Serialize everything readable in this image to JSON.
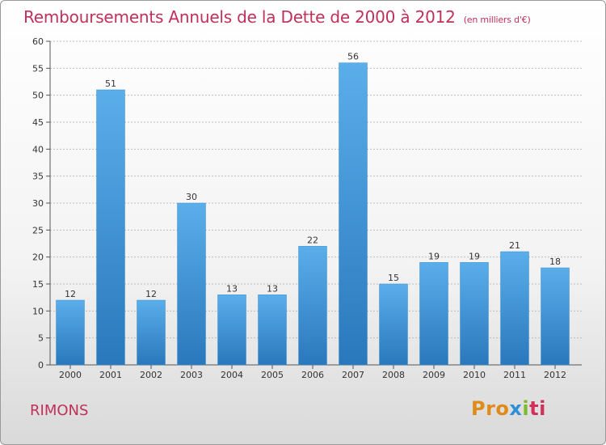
{
  "header": {
    "title": "Remboursements Annuels de la Dette de 2000 à 2012",
    "unit": "(en milliers d'€)"
  },
  "footer": {
    "place": "RIMONS",
    "logo": {
      "parts": [
        "Pro",
        "x",
        "i",
        "ti"
      ],
      "colors": [
        "#e08a1a",
        "#2f8fd4",
        "#7dbb2c",
        "#d0305a"
      ]
    }
  },
  "colors": {
    "title": "#c0305a",
    "bar_top": "#5aaeea",
    "bar_bottom": "#2a78bc",
    "grid": "#bdbdbd"
  },
  "chart_data": {
    "type": "bar",
    "title": "Remboursements Annuels de la Dette de 2000 à 2012",
    "unit": "(en milliers d'€)",
    "xlabel": "",
    "ylabel": "",
    "categories": [
      "2000",
      "2001",
      "2002",
      "2003",
      "2004",
      "2005",
      "2006",
      "2007",
      "2008",
      "2009",
      "2010",
      "2011",
      "2012"
    ],
    "values": [
      12,
      51,
      12,
      30,
      13,
      13,
      22,
      56,
      15,
      19,
      19,
      21,
      18
    ],
    "ylim": [
      0,
      60
    ],
    "yticks": [
      0,
      5,
      10,
      15,
      20,
      25,
      30,
      35,
      40,
      45,
      50,
      55,
      60
    ],
    "grid": "horizontal dashed",
    "legend": "none",
    "data_labels": true
  }
}
